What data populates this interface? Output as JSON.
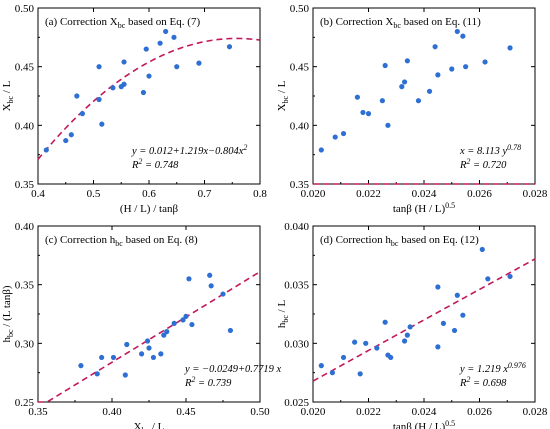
{
  "chart_data": [
    {
      "type": "scatter",
      "title": "(a) Correction X_bc based on Eq. (7)",
      "xlabel": "(H / L) / tanβ",
      "ylabel": "X_bc / L",
      "xlim": [
        0.4,
        0.8
      ],
      "ylim": [
        0.35,
        0.5
      ],
      "xticks": [
        0.4,
        0.5,
        0.6,
        0.7,
        0.8
      ],
      "yticks": [
        0.35,
        0.4,
        0.45,
        0.5
      ],
      "xtick_labels": [
        "0.4",
        "0.5",
        "0.6",
        "0.7",
        "0.8"
      ],
      "ytick_labels": [
        "0.35",
        "0.40",
        "0.45",
        "0.50"
      ],
      "fit": {
        "kind": "poly2",
        "coef": [
          0.012,
          1.219,
          -0.804
        ]
      },
      "annotations": [
        "y = 0.012+1.219x−0.804x²",
        "R² = 0.748"
      ],
      "series": [
        {
          "values": [
            [
              0.415,
              0.379
            ],
            [
              0.45,
              0.387
            ],
            [
              0.46,
              0.392
            ],
            [
              0.47,
              0.425
            ],
            [
              0.48,
              0.41
            ],
            [
              0.51,
              0.45
            ],
            [
              0.51,
              0.422
            ],
            [
              0.515,
              0.401
            ],
            [
              0.535,
              0.432
            ],
            [
              0.55,
              0.433
            ],
            [
              0.555,
              0.454
            ],
            [
              0.555,
              0.435
            ],
            [
              0.59,
              0.428
            ],
            [
              0.595,
              0.465
            ],
            [
              0.6,
              0.442
            ],
            [
              0.62,
              0.47
            ],
            [
              0.63,
              0.48
            ],
            [
              0.645,
              0.475
            ],
            [
              0.65,
              0.45
            ],
            [
              0.69,
              0.453
            ],
            [
              0.745,
              0.467
            ]
          ]
        }
      ]
    },
    {
      "type": "scatter",
      "title": "(b) Correction X_bc based on Eq. (11)",
      "xlabel": "tanβ (H / L)^0.5",
      "ylabel": "X_bc / L",
      "xlim": [
        0.02,
        0.028
      ],
      "ylim": [
        0.35,
        0.5
      ],
      "xticks": [
        0.02,
        0.022,
        0.024,
        0.026,
        0.028
      ],
      "yticks": [
        0.35,
        0.4,
        0.45,
        0.5
      ],
      "xtick_labels": [
        "0.020",
        "0.022",
        "0.024",
        "0.026",
        "0.028"
      ],
      "ytick_labels": [
        "0.35",
        "0.40",
        "0.45",
        "0.50"
      ],
      "fit": {
        "kind": "power_inverse",
        "a": 8.113,
        "b": 0.78
      },
      "annotations": [
        "x = 8.113 y^0.78",
        "R² = 0.720"
      ],
      "series": [
        {
          "values": [
            [
              0.0203,
              0.379
            ],
            [
              0.0208,
              0.39
            ],
            [
              0.0211,
              0.393
            ],
            [
              0.0216,
              0.424
            ],
            [
              0.0218,
              0.411
            ],
            [
              0.022,
              0.41
            ],
            [
              0.0225,
              0.421
            ],
            [
              0.0226,
              0.451
            ],
            [
              0.0227,
              0.4
            ],
            [
              0.0232,
              0.433
            ],
            [
              0.0233,
              0.437
            ],
            [
              0.0234,
              0.455
            ],
            [
              0.0238,
              0.421
            ],
            [
              0.0242,
              0.429
            ],
            [
              0.0244,
              0.467
            ],
            [
              0.0245,
              0.443
            ],
            [
              0.025,
              0.448
            ],
            [
              0.0252,
              0.48
            ],
            [
              0.0254,
              0.476
            ],
            [
              0.0255,
              0.45
            ],
            [
              0.0262,
              0.454
            ],
            [
              0.0271,
              0.466
            ]
          ]
        }
      ]
    },
    {
      "type": "scatter",
      "title": "(c) Correction h_bc based on Eq. (8)",
      "xlabel": "X_bc / L",
      "ylabel": "h_bc / (L tanβ)",
      "xlim": [
        0.35,
        0.5
      ],
      "ylim": [
        0.25,
        0.4
      ],
      "xticks": [
        0.35,
        0.4,
        0.45,
        0.5
      ],
      "yticks": [
        0.25,
        0.3,
        0.35,
        0.4
      ],
      "xtick_labels": [
        "0.35",
        "0.40",
        "0.45",
        "0.50"
      ],
      "ytick_labels": [
        "0.25",
        "0.30",
        "0.35",
        "0.40"
      ],
      "fit": {
        "kind": "linear",
        "coef": [
          -0.0249,
          0.7719
        ]
      },
      "annotations": [
        "y = −0.0249+0.7719 x",
        "R² = 0.739"
      ],
      "series": [
        {
          "values": [
            [
              0.379,
              0.281
            ],
            [
              0.39,
              0.274
            ],
            [
              0.393,
              0.288
            ],
            [
              0.401,
              0.288
            ],
            [
              0.409,
              0.273
            ],
            [
              0.41,
              0.299
            ],
            [
              0.42,
              0.291
            ],
            [
              0.424,
              0.302
            ],
            [
              0.425,
              0.296
            ],
            [
              0.428,
              0.288
            ],
            [
              0.433,
              0.291
            ],
            [
              0.435,
              0.307
            ],
            [
              0.437,
              0.31
            ],
            [
              0.442,
              0.317
            ],
            [
              0.448,
              0.32
            ],
            [
              0.45,
              0.323
            ],
            [
              0.452,
              0.355
            ],
            [
              0.454,
              0.316
            ],
            [
              0.466,
              0.358
            ],
            [
              0.467,
              0.349
            ],
            [
              0.475,
              0.342
            ],
            [
              0.48,
              0.311
            ]
          ]
        }
      ]
    },
    {
      "type": "scatter",
      "title": "(d) Correction h_bc based on Eq. (12)",
      "xlabel": "tanβ (H / L)^0.5",
      "ylabel": "h_bc / L",
      "xlim": [
        0.02,
        0.028
      ],
      "ylim": [
        0.025,
        0.04
      ],
      "xticks": [
        0.02,
        0.022,
        0.024,
        0.026,
        0.028
      ],
      "yticks": [
        0.025,
        0.03,
        0.035,
        0.04
      ],
      "xtick_labels": [
        "0.020",
        "0.022",
        "0.024",
        "0.026",
        "0.028"
      ],
      "ytick_labels": [
        "0.025",
        "0.030",
        "0.035",
        "0.040"
      ],
      "fit": {
        "kind": "power",
        "a": 1.219,
        "b": 0.976
      },
      "annotations": [
        "y = 1.219 x^0.976",
        "R² = 0.698"
      ],
      "series": [
        {
          "values": [
            [
              0.0203,
              0.0281
            ],
            [
              0.0207,
              0.0275
            ],
            [
              0.0211,
              0.0288
            ],
            [
              0.0215,
              0.0301
            ],
            [
              0.0217,
              0.0274
            ],
            [
              0.0219,
              0.03
            ],
            [
              0.0223,
              0.0296
            ],
            [
              0.0226,
              0.0318
            ],
            [
              0.0227,
              0.029
            ],
            [
              0.0228,
              0.0288
            ],
            [
              0.0233,
              0.0302
            ],
            [
              0.0234,
              0.0307
            ],
            [
              0.0235,
              0.0314
            ],
            [
              0.0245,
              0.0297
            ],
            [
              0.0245,
              0.0348
            ],
            [
              0.0247,
              0.0317
            ],
            [
              0.0251,
              0.0311
            ],
            [
              0.0252,
              0.0341
            ],
            [
              0.0254,
              0.0324
            ],
            [
              0.0261,
              0.038
            ],
            [
              0.0263,
              0.0355
            ],
            [
              0.0271,
              0.0357
            ]
          ]
        }
      ]
    }
  ]
}
